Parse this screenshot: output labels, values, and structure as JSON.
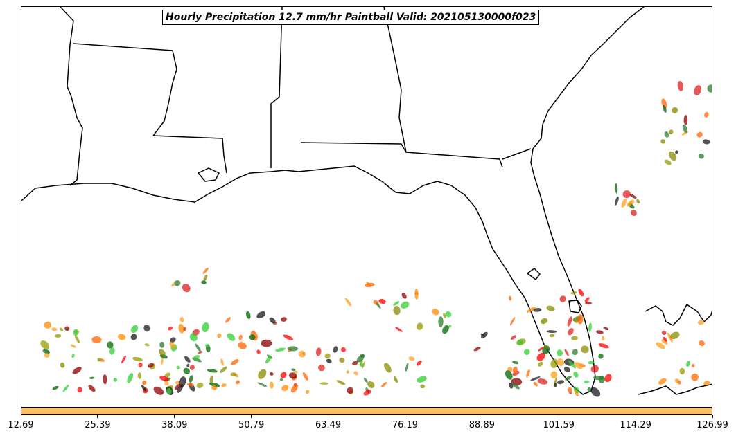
{
  "title": "Hourly Precipitation 12.7 mm/hr Paintball Valid: 202105130000f023",
  "colorbar": {
    "color": "#ffbf60",
    "tick_labels": [
      "12.69",
      "25.39",
      "38.09",
      "50.79",
      "63.49",
      "76.19",
      "88.89",
      "101.59",
      "114.29",
      "126.99"
    ]
  },
  "member_colors": [
    "#ff0000",
    "#8b0000",
    "#006400",
    "#32cd32",
    "#ff8c00",
    "#ff6600",
    "#9a9a00",
    "#8b8b00",
    "#1a1a1a",
    "#dd2222",
    "#2b7a2b",
    "#ffa020"
  ],
  "icons": {
    "map": "map-outline"
  }
}
